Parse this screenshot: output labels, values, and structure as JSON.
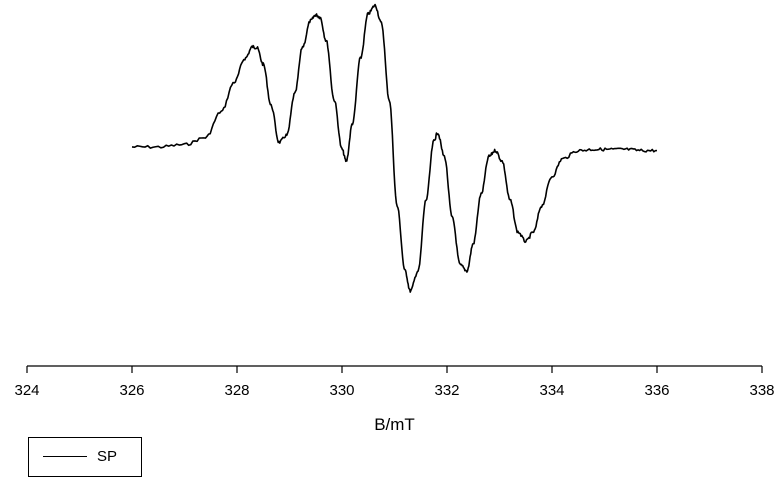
{
  "chart_data": {
    "type": "line",
    "title": "",
    "xlabel": "B/mT",
    "ylabel": "",
    "xlim": [
      324,
      338
    ],
    "ylim": [
      -1.2,
      1.1
    ],
    "x_ticks": [
      324,
      326,
      328,
      330,
      332,
      334,
      336,
      338
    ],
    "x_tick_labels": [
      "324",
      "326",
      "328",
      "330",
      "332",
      "334",
      "336",
      "338"
    ],
    "y_axis_visible": false,
    "grid": false,
    "legend_position": "bottom-left",
    "series": [
      {
        "name": "SP",
        "color": "#000000",
        "x": [
          326.0,
          326.5,
          327.0,
          327.4,
          327.7,
          327.95,
          328.15,
          328.3,
          328.38,
          328.5,
          328.65,
          328.8,
          328.95,
          329.1,
          329.25,
          329.4,
          329.5,
          329.58,
          329.7,
          329.85,
          330.0,
          330.08,
          330.2,
          330.35,
          330.5,
          330.63,
          330.75,
          330.9,
          331.05,
          331.2,
          331.3,
          331.45,
          331.6,
          331.75,
          331.82,
          331.95,
          332.1,
          332.25,
          332.38,
          332.5,
          332.65,
          332.8,
          332.92,
          333.05,
          333.2,
          333.35,
          333.5,
          333.65,
          333.8,
          334.0,
          334.2,
          334.5,
          334.8,
          335.1,
          335.4,
          335.7,
          336.0
        ],
        "y": [
          0.0,
          0.0,
          0.02,
          0.08,
          0.3,
          0.55,
          0.75,
          0.85,
          0.84,
          0.7,
          0.35,
          0.04,
          0.1,
          0.45,
          0.85,
          1.07,
          1.12,
          1.1,
          0.9,
          0.4,
          -0.02,
          -0.12,
          0.2,
          0.75,
          1.13,
          1.2,
          1.05,
          0.4,
          -0.5,
          -1.05,
          -1.22,
          -1.05,
          -0.45,
          0.05,
          0.12,
          -0.08,
          -0.6,
          -1.0,
          -1.05,
          -0.82,
          -0.4,
          -0.08,
          -0.03,
          -0.12,
          -0.45,
          -0.72,
          -0.8,
          -0.72,
          -0.5,
          -0.25,
          -0.1,
          -0.03,
          -0.02,
          -0.02,
          -0.02,
          -0.03,
          -0.03
        ]
      }
    ]
  }
}
